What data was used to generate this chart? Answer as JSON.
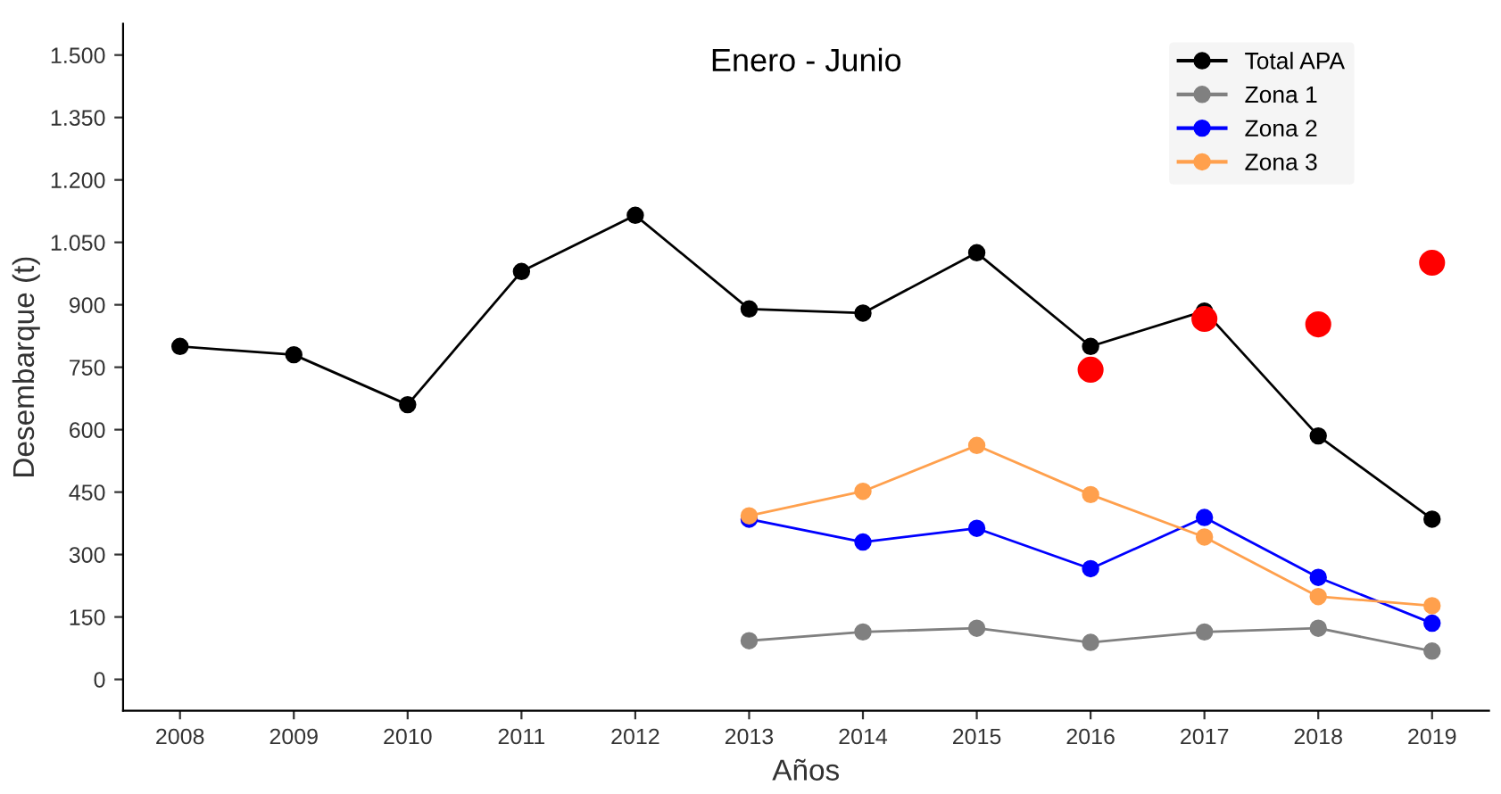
{
  "chart_data": {
    "type": "line",
    "title": "Enero - Junio",
    "xlabel": "Años",
    "ylabel": "Desembarque (t)",
    "categories": [
      "2008",
      "2009",
      "2010",
      "2011",
      "2012",
      "2013",
      "2014",
      "2015",
      "2016",
      "2017",
      "2018",
      "2019"
    ],
    "series": [
      {
        "name": "Total APA",
        "color": "#000000",
        "values": [
          800,
          780,
          660,
          980,
          1115,
          890,
          880,
          1025,
          800,
          885,
          585,
          385
        ]
      },
      {
        "name": "Zona 1",
        "color": "#808080",
        "values": [
          null,
          null,
          null,
          null,
          null,
          93,
          114,
          123,
          89,
          114,
          123,
          68
        ]
      },
      {
        "name": "Zona 2",
        "color": "#0000ff",
        "values": [
          null,
          null,
          null,
          null,
          null,
          385,
          330,
          363,
          266,
          389,
          245,
          135
        ]
      },
      {
        "name": "Zona 3",
        "color": "#ffa04d",
        "values": [
          null,
          null,
          null,
          null,
          null,
          393,
          452,
          562,
          444,
          342,
          199,
          177
        ]
      },
      {
        "type": "scatter",
        "color": "#ff0000",
        "values": [
          null,
          null,
          null,
          null,
          null,
          null,
          null,
          null,
          744,
          866,
          853,
          1001
        ]
      }
    ],
    "ylim": [
      -75,
      1575
    ],
    "yticks": [
      {
        "value": 0,
        "label": "0"
      },
      {
        "value": 150,
        "label": "150"
      },
      {
        "value": 300,
        "label": "300"
      },
      {
        "value": 450,
        "label": "450"
      },
      {
        "value": 600,
        "label": "600"
      },
      {
        "value": 750,
        "label": "750"
      },
      {
        "value": 900,
        "label": "900"
      },
      {
        "value": 1050,
        "label": "1.050"
      },
      {
        "value": 1200,
        "label": "1.200"
      },
      {
        "value": 1350,
        "label": "1.350"
      },
      {
        "value": 1500,
        "label": "1.500"
      }
    ],
    "grid": false,
    "legend": "top right",
    "marker": "circle",
    "line_style": "solid"
  }
}
